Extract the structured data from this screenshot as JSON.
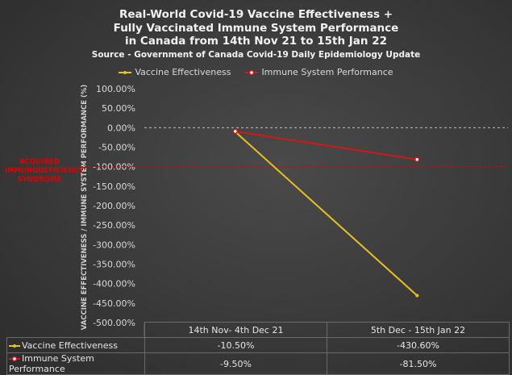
{
  "chart_data": {
    "type": "line",
    "title_lines": [
      "Real-World Covid-19 Vaccine Effectiveness +",
      "Fully Vaccinated Immune System Performance",
      "in Canada from 14th Nov 21 to 15th Jan 22"
    ],
    "subtitle": "Source - Government of Canada Covid-19 Daily Epidemiology Update",
    "ylabel": "VACCINE EFFECTIVENESS / IMMUNE SYSTEM PERFORMANCE (%)",
    "categories": [
      "14th Nov-  4th Dec 21",
      "5th Dec - 15th Jan 22"
    ],
    "ylim": [
      -500,
      100
    ],
    "yticks": [
      "100.00%",
      "50.00%",
      "0.00%",
      "-50.00%",
      "-100.00%",
      "-150.00%",
      "-200.00%",
      "-250.00%",
      "-300.00%",
      "-350.00%",
      "-400.00%",
      "-450.00%",
      "-500.00%"
    ],
    "reference_line": {
      "value": -100,
      "label": "ACQUIRED IMMUNODEFICIENCY SYNDROME",
      "color": "#e00000"
    },
    "zero_line": true,
    "legend_position": "top",
    "series": [
      {
        "name": "Vaccine Effectiveness",
        "color": "#e8c020",
        "values": [
          -10.5,
          -430.6
        ],
        "labels": [
          "-10.50%",
          "-430.60%"
        ]
      },
      {
        "name": "Immune System Performance",
        "color": "#d01818",
        "values": [
          -9.5,
          -81.5
        ],
        "labels": [
          "-9.50%",
          "-81.50%"
        ]
      }
    ]
  }
}
